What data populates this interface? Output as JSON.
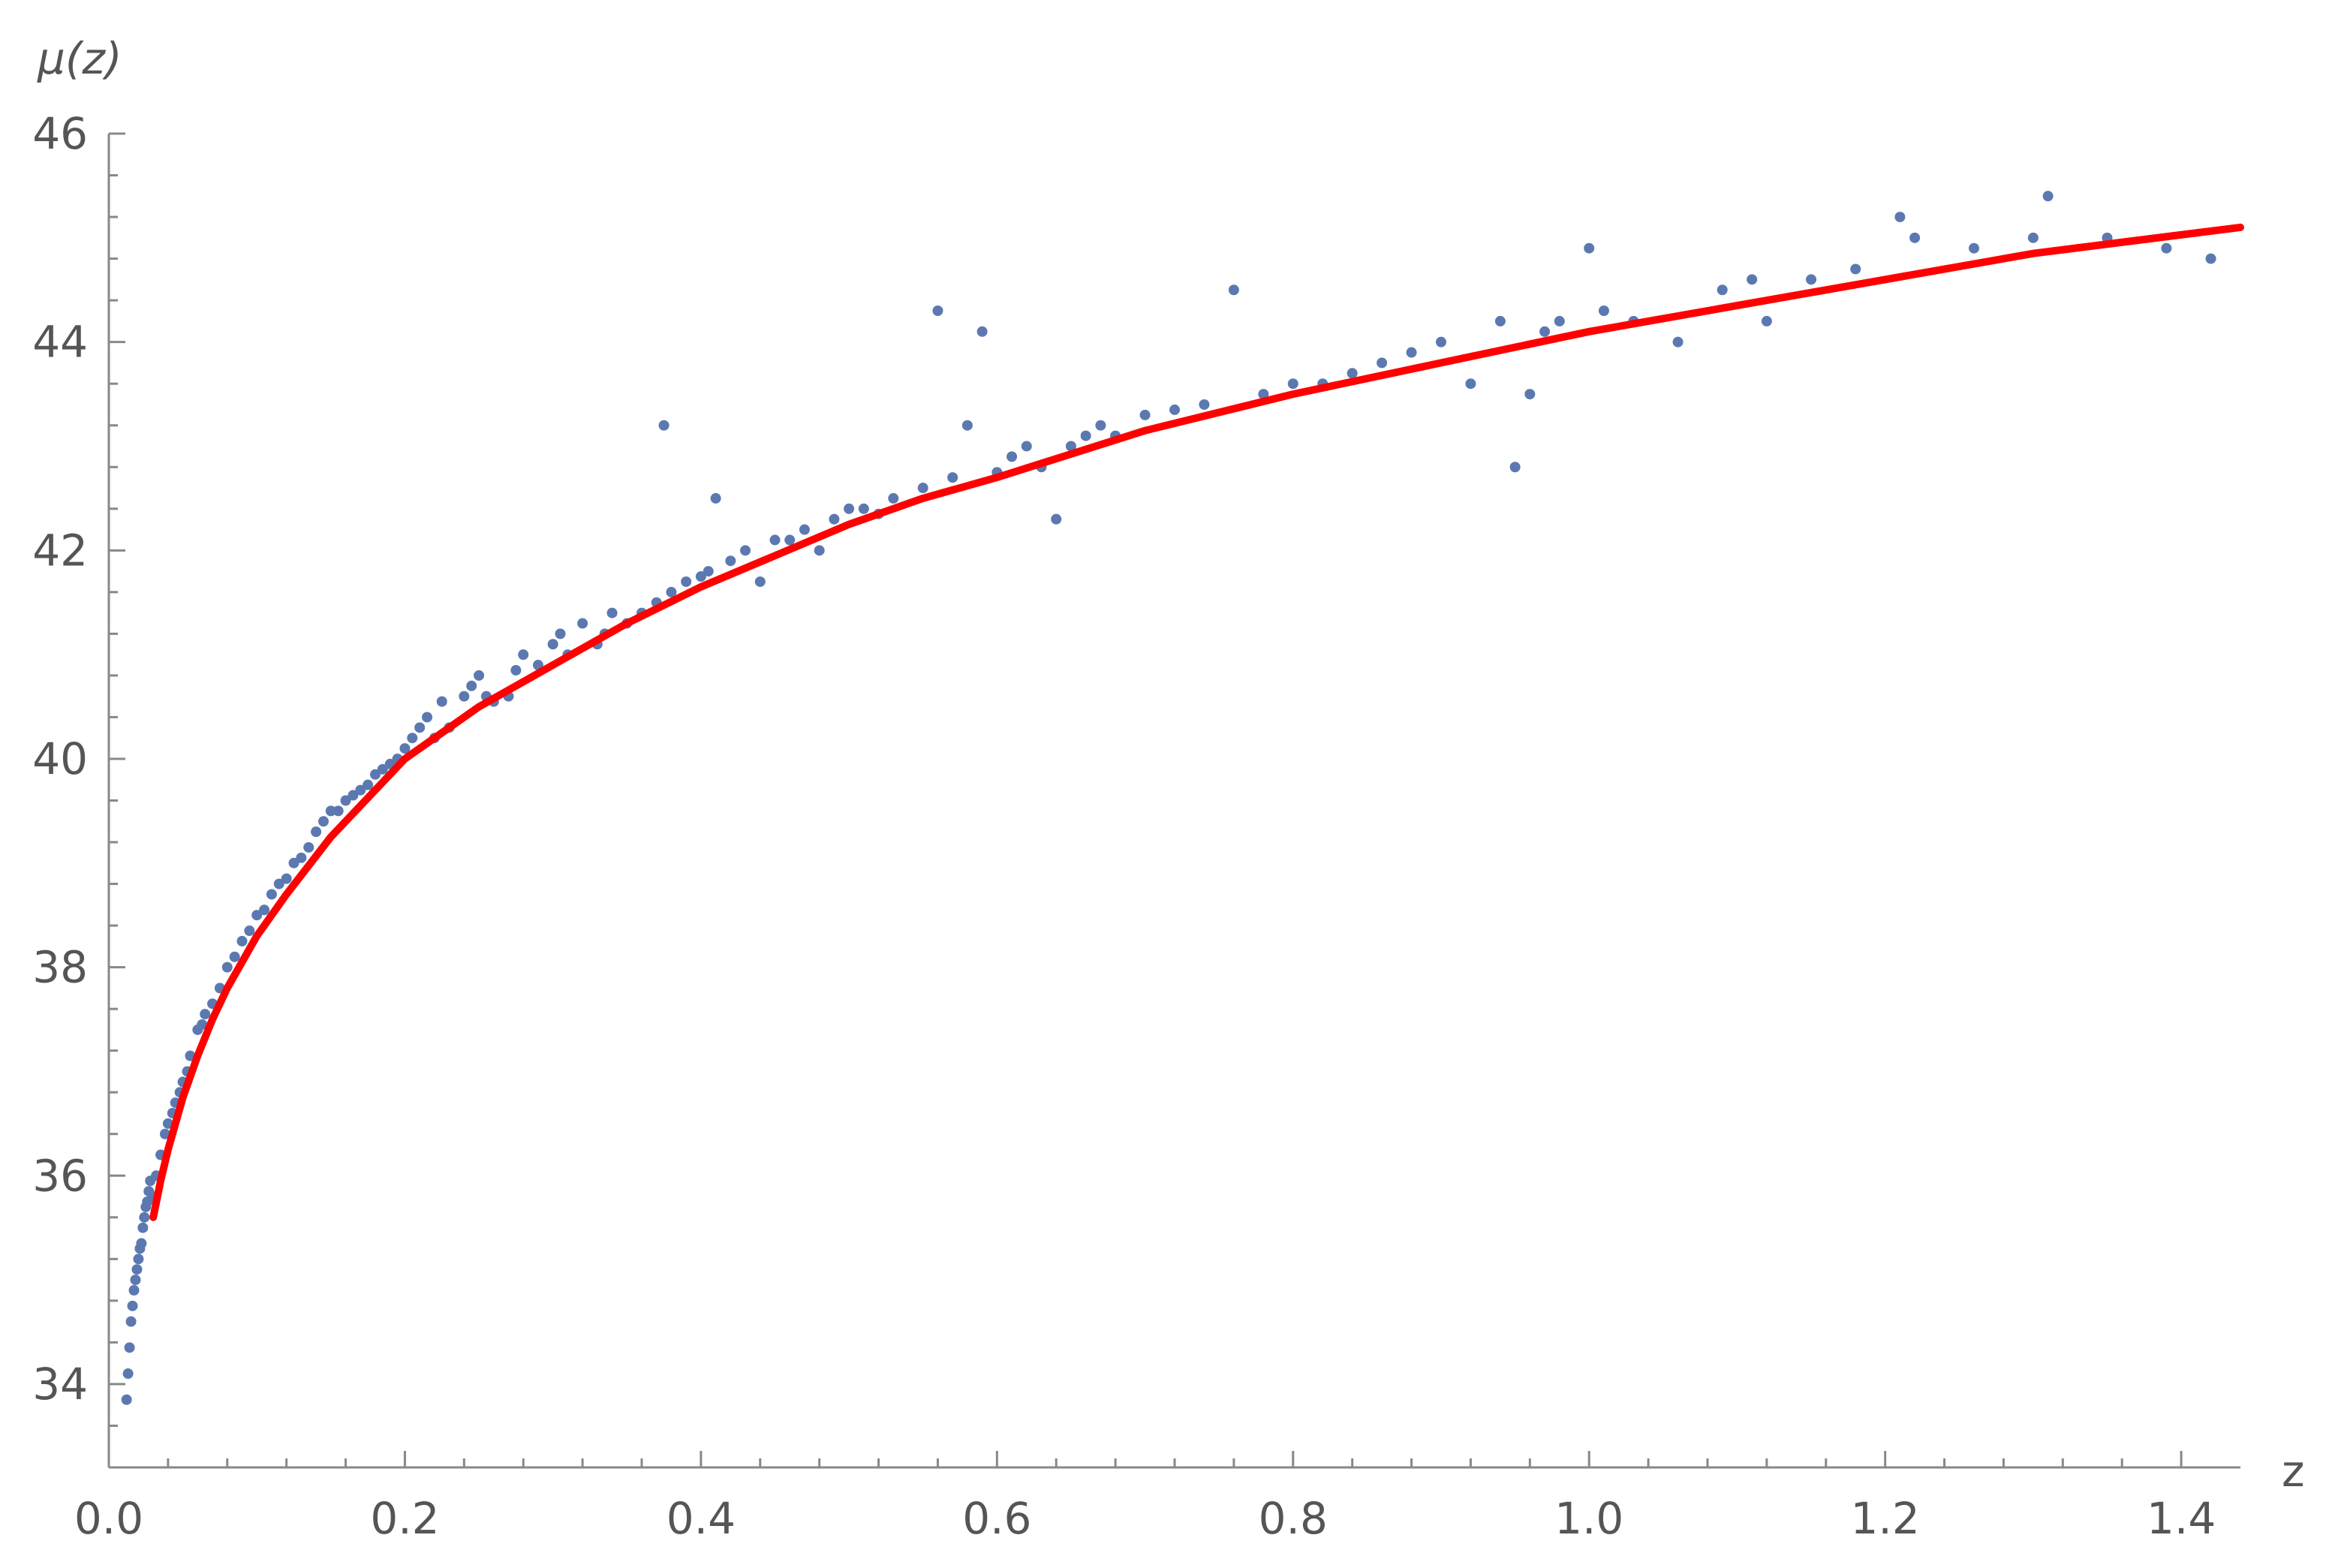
{
  "chart_data": {
    "type": "scatter",
    "title": "",
    "xlabel": "z",
    "ylabel": "μ(z)",
    "xlim": [
      0,
      1.44
    ],
    "ylim": [
      33.2,
      46
    ],
    "x_ticks": [
      0.0,
      0.2,
      0.4,
      0.6,
      0.8,
      1.0,
      1.2,
      1.4
    ],
    "x_tick_labels": [
      "0.0",
      "0.2",
      "0.4",
      "0.6",
      "0.8",
      "1.0",
      "1.2",
      "1.4"
    ],
    "y_ticks": [
      34,
      36,
      38,
      40,
      42,
      44,
      46
    ],
    "y_tick_labels": [
      "34",
      "36",
      "38",
      "40",
      "42",
      "44",
      "46"
    ],
    "grid": false,
    "legend": "none",
    "colors": {
      "points": "#5b79b0",
      "curve": "#ff0000",
      "axis": "#888888",
      "text": "#555555"
    },
    "series": [
      {
        "kind": "points",
        "x": [
          0.012,
          0.013,
          0.014,
          0.015,
          0.016,
          0.017,
          0.018,
          0.019,
          0.02,
          0.021,
          0.022,
          0.023,
          0.024,
          0.025,
          0.026,
          0.027,
          0.028,
          0.03,
          0.032,
          0.035,
          0.038,
          0.04,
          0.043,
          0.045,
          0.048,
          0.05,
          0.053,
          0.055,
          0.06,
          0.063,
          0.065,
          0.07,
          0.075,
          0.08,
          0.085,
          0.09,
          0.095,
          0.1,
          0.105,
          0.11,
          0.115,
          0.12,
          0.125,
          0.13,
          0.135,
          0.14,
          0.145,
          0.15,
          0.155,
          0.16,
          0.165,
          0.17,
          0.175,
          0.18,
          0.185,
          0.19,
          0.195,
          0.2,
          0.205,
          0.21,
          0.215,
          0.22,
          0.225,
          0.23,
          0.24,
          0.245,
          0.25,
          0.255,
          0.26,
          0.27,
          0.275,
          0.28,
          0.29,
          0.3,
          0.305,
          0.31,
          0.32,
          0.33,
          0.335,
          0.34,
          0.35,
          0.36,
          0.37,
          0.375,
          0.38,
          0.39,
          0.4,
          0.405,
          0.41,
          0.42,
          0.43,
          0.44,
          0.45,
          0.46,
          0.47,
          0.48,
          0.49,
          0.5,
          0.51,
          0.52,
          0.53,
          0.55,
          0.56,
          0.57,
          0.58,
          0.59,
          0.6,
          0.61,
          0.62,
          0.63,
          0.64,
          0.65,
          0.66,
          0.67,
          0.68,
          0.7,
          0.72,
          0.74,
          0.76,
          0.78,
          0.8,
          0.82,
          0.84,
          0.86,
          0.88,
          0.9,
          0.92,
          0.94,
          0.95,
          0.96,
          0.97,
          0.98,
          1.0,
          1.01,
          1.03,
          1.06,
          1.09,
          1.11,
          1.12,
          1.15,
          1.18,
          1.21,
          1.22,
          1.26,
          1.3,
          1.31,
          1.35,
          1.39,
          1.42
        ],
        "y": [
          33.85,
          34.1,
          34.35,
          34.6,
          34.75,
          34.9,
          35.0,
          35.1,
          35.2,
          35.3,
          35.35,
          35.5,
          35.6,
          35.7,
          35.75,
          35.85,
          35.95,
          35.8,
          36.0,
          36.2,
          36.4,
          36.5,
          36.6,
          36.7,
          36.8,
          36.9,
          37.0,
          37.15,
          37.4,
          37.45,
          37.55,
          37.65,
          37.8,
          38.0,
          38.1,
          38.25,
          38.35,
          38.5,
          38.55,
          38.7,
          38.8,
          38.85,
          39.0,
          39.05,
          39.15,
          39.3,
          39.4,
          39.5,
          39.5,
          39.6,
          39.65,
          39.7,
          39.75,
          39.85,
          39.9,
          39.95,
          40.0,
          40.1,
          40.2,
          40.3,
          40.4,
          40.2,
          40.55,
          40.3,
          40.6,
          40.7,
          40.8,
          40.6,
          40.55,
          40.6,
          40.85,
          41.0,
          40.9,
          41.1,
          41.2,
          41.0,
          41.3,
          41.1,
          41.2,
          41.4,
          41.3,
          41.4,
          41.5,
          43.2,
          41.6,
          41.7,
          41.75,
          41.8,
          42.5,
          41.9,
          42.0,
          41.7,
          42.1,
          42.1,
          42.2,
          42.0,
          42.3,
          42.4,
          42.4,
          42.35,
          42.5,
          42.6,
          44.3,
          42.7,
          43.2,
          44.1,
          42.75,
          42.9,
          43.0,
          42.8,
          42.3,
          43.0,
          43.1,
          43.2,
          43.1,
          43.3,
          43.35,
          43.4,
          44.5,
          43.5,
          43.6,
          43.6,
          43.7,
          43.8,
          43.9,
          44.0,
          43.6,
          44.2,
          42.8,
          43.5,
          44.1,
          44.2,
          44.9,
          44.3,
          44.2,
          44.0,
          44.5,
          44.6,
          44.2,
          44.6,
          44.7,
          45.2,
          45.0,
          44.9,
          45.0,
          45.4,
          45.0,
          44.9,
          44.8
        ]
      },
      {
        "kind": "curve",
        "x": [
          0.03,
          0.035,
          0.04,
          0.05,
          0.06,
          0.07,
          0.08,
          0.1,
          0.12,
          0.15,
          0.18,
          0.2,
          0.25,
          0.3,
          0.35,
          0.4,
          0.45,
          0.5,
          0.55,
          0.6,
          0.7,
          0.8,
          0.9,
          1.0,
          1.1,
          1.2,
          1.3,
          1.44
        ],
        "y": [
          35.6,
          35.95,
          36.25,
          36.75,
          37.15,
          37.5,
          37.8,
          38.3,
          38.7,
          39.25,
          39.7,
          40.0,
          40.5,
          40.9,
          41.3,
          41.65,
          41.95,
          42.25,
          42.5,
          42.7,
          43.15,
          43.5,
          43.8,
          44.1,
          44.35,
          44.6,
          44.85,
          45.1
        ]
      }
    ]
  }
}
